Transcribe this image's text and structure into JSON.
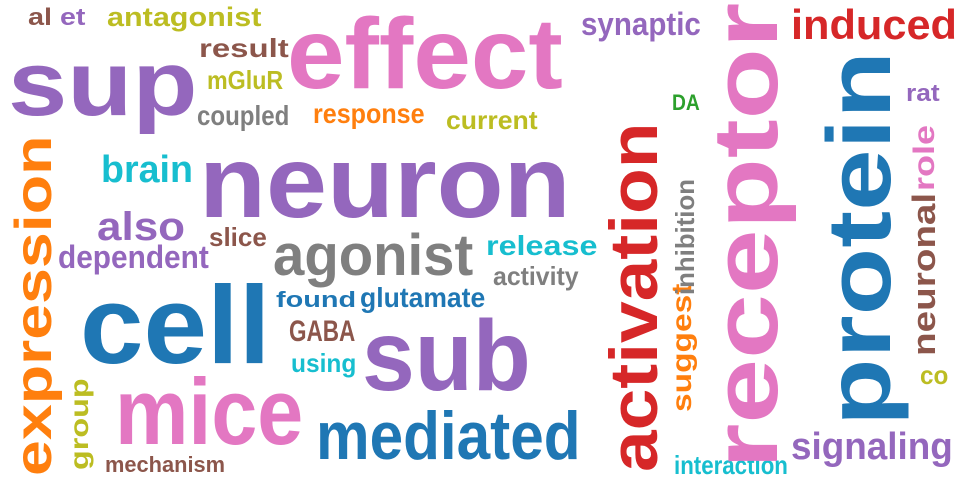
{
  "words": [
    {
      "text": "al",
      "color": "#8c564b"
    },
    {
      "text": "et",
      "color": "#9467bd"
    },
    {
      "text": "antagonist",
      "color": "#bcbd22"
    },
    {
      "text": "effect",
      "color": "#e377c2"
    },
    {
      "text": "synaptic",
      "color": "#9467bd"
    },
    {
      "text": "induced",
      "color": "#d62728"
    },
    {
      "text": "sup",
      "color": "#9467bd"
    },
    {
      "text": "result",
      "color": "#8c564b"
    },
    {
      "text": "mGluR",
      "color": "#bcbd22"
    },
    {
      "text": "coupled",
      "color": "#7f7f7f"
    },
    {
      "text": "response",
      "color": "#ff7f0e"
    },
    {
      "text": "current",
      "color": "#bcbd22"
    },
    {
      "text": "DA",
      "color": "#2ca02c"
    },
    {
      "text": "rat",
      "color": "#9467bd"
    },
    {
      "text": "neuron",
      "color": "#9467bd"
    },
    {
      "text": "brain",
      "color": "#17becf"
    },
    {
      "text": "also",
      "color": "#9467bd"
    },
    {
      "text": "slice",
      "color": "#8c564b"
    },
    {
      "text": "dependent",
      "color": "#9467bd"
    },
    {
      "text": "agonist",
      "color": "#7f7f7f"
    },
    {
      "text": "release",
      "color": "#17becf"
    },
    {
      "text": "activity",
      "color": "#7f7f7f"
    },
    {
      "text": "found",
      "color": "#1f77b4"
    },
    {
      "text": "glutamate",
      "color": "#1f77b4"
    },
    {
      "text": "cell",
      "color": "#1f77b4"
    },
    {
      "text": "GABA",
      "color": "#8c564b"
    },
    {
      "text": "sub",
      "color": "#9467bd"
    },
    {
      "text": "using",
      "color": "#17becf"
    },
    {
      "text": "mice",
      "color": "#e377c2"
    },
    {
      "text": "mediated",
      "color": "#1f77b4"
    },
    {
      "text": "mechanism",
      "color": "#8c564b"
    },
    {
      "text": "interaction",
      "color": "#17becf"
    },
    {
      "text": "signaling",
      "color": "#9467bd"
    },
    {
      "text": "co",
      "color": "#bcbd22"
    },
    {
      "text": "expression",
      "color": "#ff7f0e"
    },
    {
      "text": "group",
      "color": "#bcbd22"
    },
    {
      "text": "activation",
      "color": "#d62728"
    },
    {
      "text": "suggest",
      "color": "#ff7f0e"
    },
    {
      "text": "inhibition",
      "color": "#7f7f7f"
    },
    {
      "text": "receptor",
      "color": "#e377c2"
    },
    {
      "text": "protein",
      "color": "#1f77b4"
    },
    {
      "text": "neuronal",
      "color": "#8c564b"
    },
    {
      "text": "role",
      "color": "#e377c2"
    }
  ]
}
